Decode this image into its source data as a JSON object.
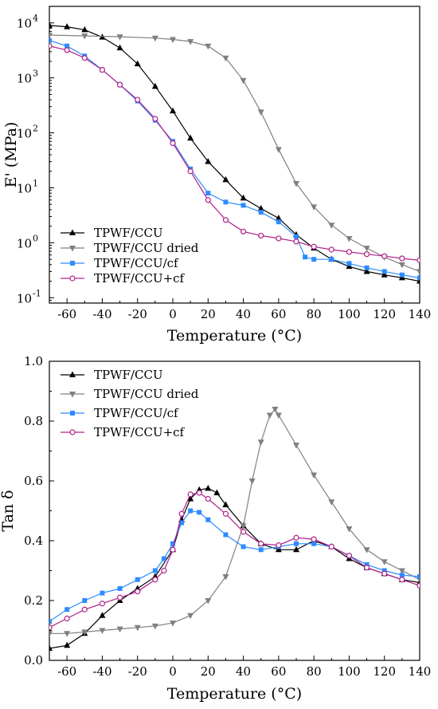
{
  "chart_data": [
    {
      "type": "line",
      "xlabel": "Temperature (°C)",
      "ylabel": "E' (MPa)",
      "yscale": "log",
      "xlim": [
        -70,
        140
      ],
      "ylim": [
        0.08,
        20000
      ],
      "xticks": [
        "-60",
        "-40",
        "-20",
        "0",
        "20",
        "40",
        "60",
        "80",
        "100",
        "120",
        "140"
      ],
      "yticks": [
        {
          "base": "10",
          "exp": "-1"
        },
        {
          "base": "10",
          "exp": "0"
        },
        {
          "base": "10",
          "exp": "1"
        },
        {
          "base": "10",
          "exp": "2"
        },
        {
          "base": "10",
          "exp": "3"
        },
        {
          "base": "10",
          "exp": "4"
        }
      ],
      "legend_position": "bottom-left",
      "series": [
        {
          "name": "TPWF/CCU",
          "color": "#000000",
          "marker": "triangle-up",
          "x": [
            -70,
            -60,
            -50,
            -40,
            -30,
            -20,
            -10,
            0,
            10,
            20,
            30,
            40,
            50,
            60,
            70,
            80,
            90,
            100,
            110,
            120,
            130,
            140
          ],
          "y": [
            9000,
            8500,
            7500,
            5500,
            3500,
            1800,
            700,
            250,
            80,
            30,
            14,
            6.5,
            4.2,
            2.8,
            1.4,
            0.8,
            0.5,
            0.37,
            0.3,
            0.26,
            0.23,
            0.2
          ]
        },
        {
          "name": "TPWF/CCU dried",
          "color": "#808080",
          "marker": "triangle-down",
          "x": [
            -70,
            -50,
            -30,
            -10,
            0,
            10,
            20,
            30,
            40,
            50,
            60,
            70,
            80,
            90,
            100,
            110,
            120,
            130,
            140
          ],
          "y": [
            6000,
            5800,
            5600,
            5300,
            5000,
            4600,
            3800,
            2300,
            900,
            240,
            50,
            12,
            4.5,
            2.1,
            1.2,
            0.8,
            0.55,
            0.4,
            0.3
          ]
        },
        {
          "name": "TPWF/CCU/cf",
          "color": "#2d8cff",
          "marker": "square",
          "x": [
            -70,
            -60,
            -50,
            -40,
            -30,
            -20,
            -10,
            0,
            10,
            20,
            30,
            40,
            50,
            60,
            70,
            75,
            80,
            90,
            100,
            110,
            120,
            130,
            140
          ],
          "y": [
            4800,
            3800,
            2500,
            1400,
            750,
            380,
            170,
            70,
            22,
            8,
            5.5,
            4.8,
            3.6,
            2.4,
            1.3,
            0.55,
            0.5,
            0.5,
            0.42,
            0.35,
            0.3,
            0.26,
            0.23
          ]
        },
        {
          "name": "TPWF/CCU+cf",
          "color": "#b0208a",
          "marker": "circle",
          "x": [
            -70,
            -60,
            -50,
            -40,
            -30,
            -20,
            -10,
            0,
            10,
            20,
            30,
            40,
            50,
            60,
            70,
            80,
            90,
            100,
            110,
            120,
            130,
            140
          ],
          "y": [
            3800,
            3200,
            2300,
            1400,
            750,
            400,
            180,
            65,
            20,
            6,
            2.6,
            1.6,
            1.35,
            1.2,
            1.05,
            0.85,
            0.75,
            0.68,
            0.62,
            0.57,
            0.52,
            0.48
          ]
        }
      ]
    },
    {
      "type": "line",
      "xlabel": "Temperature (°C)",
      "ylabel": "Tan δ",
      "xlim": [
        -70,
        140
      ],
      "ylim": [
        0.0,
        1.0
      ],
      "xticks": [
        "-60",
        "-40",
        "-20",
        "0",
        "20",
        "40",
        "60",
        "80",
        "100",
        "120",
        "140"
      ],
      "yticks": [
        "0.0",
        "0.2",
        "0.4",
        "0.6",
        "0.8",
        "1.0"
      ],
      "legend_position": "top-left",
      "series": [
        {
          "name": "TPWF/CCU",
          "color": "#000000",
          "marker": "triangle-up",
          "x": [
            -70,
            -60,
            -50,
            -40,
            -30,
            -20,
            -10,
            0,
            5,
            10,
            15,
            20,
            25,
            30,
            40,
            50,
            60,
            70,
            80,
            90,
            100,
            110,
            120,
            130,
            140
          ],
          "y": [
            0.04,
            0.05,
            0.09,
            0.15,
            0.2,
            0.24,
            0.28,
            0.37,
            0.47,
            0.54,
            0.57,
            0.575,
            0.56,
            0.52,
            0.45,
            0.39,
            0.37,
            0.37,
            0.4,
            0.38,
            0.34,
            0.31,
            0.29,
            0.27,
            0.26
          ]
        },
        {
          "name": "TPWF/CCU dried",
          "color": "#808080",
          "marker": "triangle-down",
          "x": [
            -70,
            -60,
            -50,
            -40,
            -30,
            -20,
            -10,
            0,
            10,
            20,
            30,
            40,
            45,
            50,
            55,
            58,
            60,
            70,
            80,
            90,
            100,
            110,
            120,
            130,
            140
          ],
          "y": [
            0.09,
            0.09,
            0.095,
            0.1,
            0.105,
            0.11,
            0.115,
            0.125,
            0.15,
            0.2,
            0.28,
            0.45,
            0.6,
            0.73,
            0.82,
            0.84,
            0.82,
            0.72,
            0.62,
            0.53,
            0.44,
            0.37,
            0.33,
            0.3,
            0.27
          ]
        },
        {
          "name": "TPWF/CCU/cf",
          "color": "#2d8cff",
          "marker": "square",
          "x": [
            -70,
            -60,
            -50,
            -40,
            -30,
            -20,
            -10,
            -5,
            0,
            5,
            10,
            15,
            20,
            30,
            40,
            50,
            60,
            70,
            80,
            90,
            100,
            110,
            120,
            130,
            140
          ],
          "y": [
            0.13,
            0.17,
            0.2,
            0.225,
            0.24,
            0.27,
            0.3,
            0.34,
            0.39,
            0.46,
            0.5,
            0.495,
            0.47,
            0.42,
            0.38,
            0.37,
            0.38,
            0.39,
            0.39,
            0.38,
            0.35,
            0.32,
            0.3,
            0.285,
            0.28
          ]
        },
        {
          "name": "TPWF/CCU+cf",
          "color": "#b0208a",
          "marker": "circle",
          "x": [
            -70,
            -60,
            -50,
            -40,
            -30,
            -20,
            -10,
            -5,
            0,
            5,
            10,
            15,
            20,
            30,
            40,
            50,
            60,
            70,
            80,
            90,
            100,
            110,
            120,
            130,
            140
          ],
          "y": [
            0.11,
            0.14,
            0.17,
            0.19,
            0.21,
            0.23,
            0.27,
            0.3,
            0.37,
            0.49,
            0.555,
            0.56,
            0.54,
            0.49,
            0.43,
            0.39,
            0.385,
            0.41,
            0.405,
            0.38,
            0.35,
            0.31,
            0.29,
            0.27,
            0.25
          ]
        }
      ]
    }
  ]
}
